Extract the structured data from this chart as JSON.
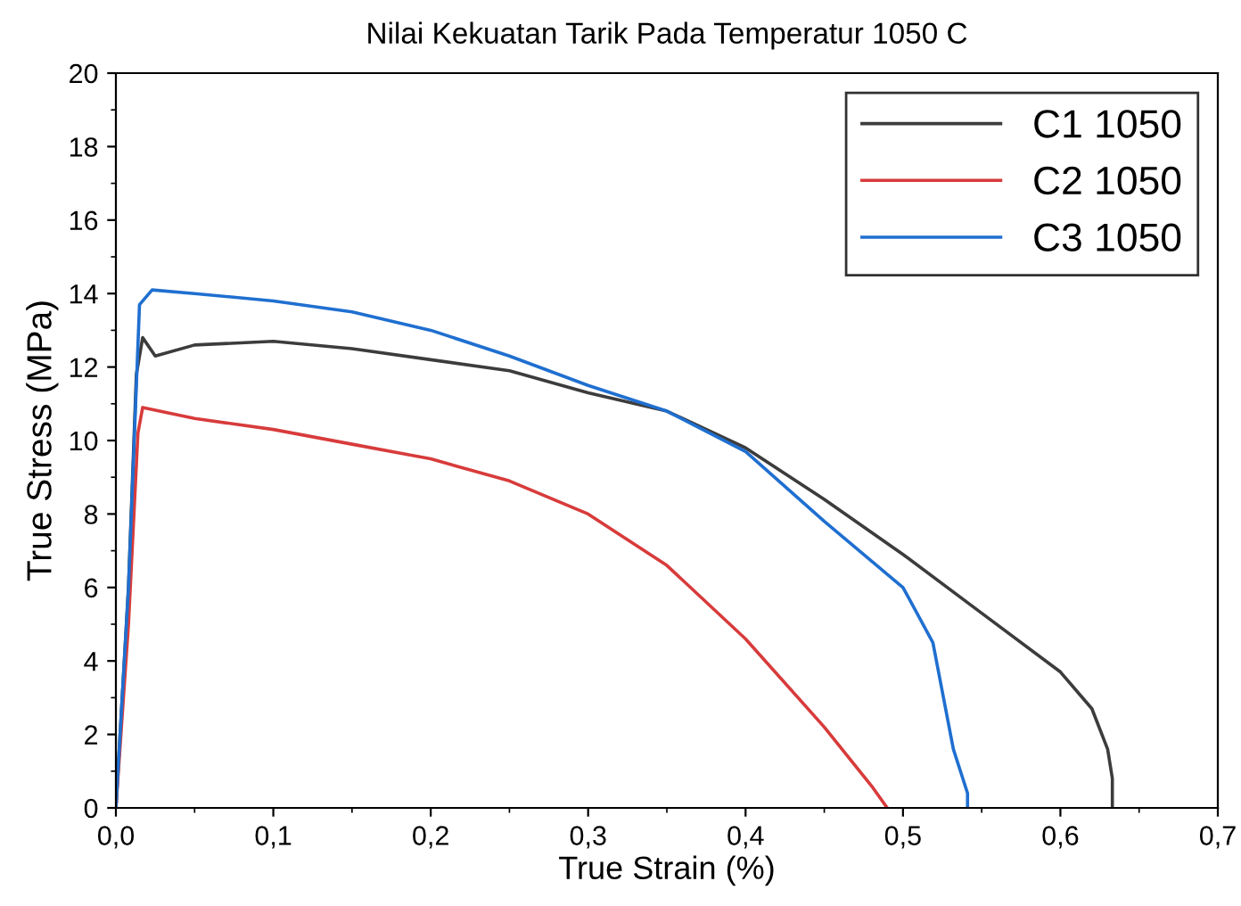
{
  "chart_data": {
    "type": "line",
    "title": "Nilai Kekuatan Tarik Pada Temperatur 1050 C",
    "xlabel": "True Strain (%)",
    "ylabel": "True Stress (MPa)",
    "xlim": [
      0,
      0.7
    ],
    "ylim": [
      0,
      20
    ],
    "xticks": [
      {
        "value": 0,
        "label": "0,0"
      },
      {
        "value": 0.1,
        "label": "0,1"
      },
      {
        "value": 0.2,
        "label": "0,2"
      },
      {
        "value": 0.3,
        "label": "0,3"
      },
      {
        "value": 0.4,
        "label": "0,4"
      },
      {
        "value": 0.5,
        "label": "0,5"
      },
      {
        "value": 0.6,
        "label": "0,6"
      },
      {
        "value": 0.7,
        "label": "0,7"
      }
    ],
    "yticks": [
      0,
      2,
      4,
      6,
      8,
      10,
      12,
      14,
      16,
      18,
      20
    ],
    "grid": false,
    "legend": "top right",
    "marker": "none",
    "line_style": "solid",
    "series": [
      {
        "name": "C1 1050",
        "color": "#3c3c3c",
        "x": [
          0,
          0.008,
          0.013,
          0.017,
          0.025,
          0.05,
          0.1,
          0.15,
          0.2,
          0.25,
          0.3,
          0.35,
          0.4,
          0.45,
          0.5,
          0.55,
          0.6,
          0.62,
          0.63,
          0.633,
          0.633
        ],
        "values": [
          0,
          6,
          11.8,
          12.8,
          12.3,
          12.6,
          12.7,
          12.5,
          12.2,
          11.9,
          11.3,
          10.8,
          9.8,
          8.4,
          6.9,
          5.3,
          3.7,
          2.7,
          1.6,
          0.8,
          0
        ]
      },
      {
        "name": "C2 1050",
        "color": "#d83b3b",
        "x": [
          0,
          0.008,
          0.014,
          0.017,
          0.05,
          0.1,
          0.15,
          0.2,
          0.25,
          0.3,
          0.35,
          0.4,
          0.45,
          0.48,
          0.49
        ],
        "values": [
          0,
          5,
          10.2,
          10.9,
          10.6,
          10.3,
          9.9,
          9.5,
          8.9,
          8.0,
          6.6,
          4.6,
          2.2,
          0.6,
          0
        ]
      },
      {
        "name": "C3 1050",
        "color": "#1f6fd0",
        "x": [
          0,
          0.008,
          0.015,
          0.023,
          0.05,
          0.1,
          0.15,
          0.2,
          0.25,
          0.3,
          0.35,
          0.4,
          0.45,
          0.5,
          0.519,
          0.532,
          0.541,
          0.541
        ],
        "values": [
          0,
          6,
          13.7,
          14.1,
          14.0,
          13.8,
          13.5,
          13.0,
          12.3,
          11.5,
          10.8,
          9.7,
          7.8,
          6.0,
          4.5,
          1.6,
          0.4,
          0
        ]
      }
    ]
  }
}
